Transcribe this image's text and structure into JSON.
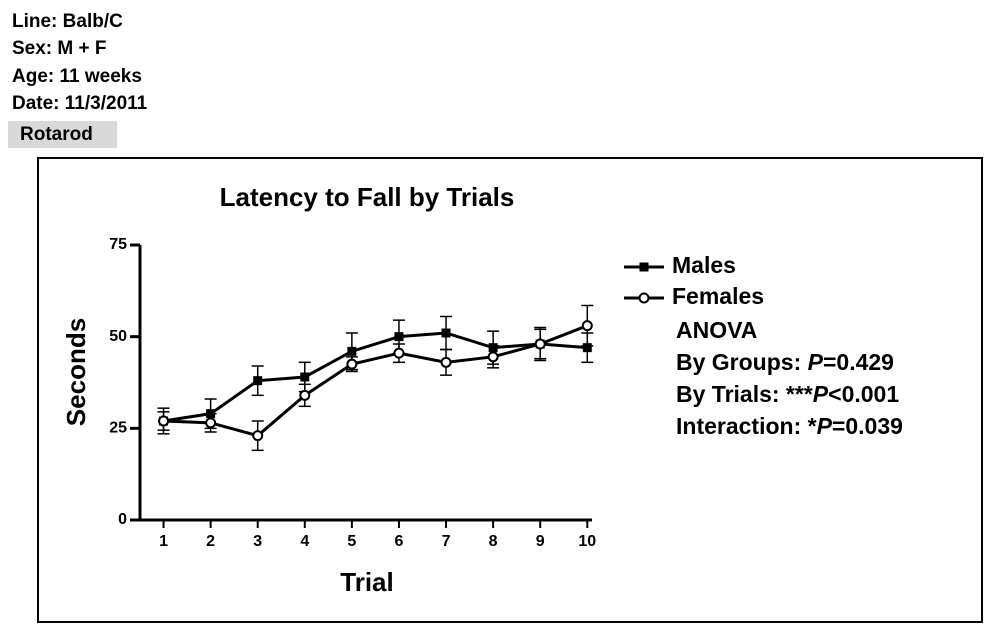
{
  "header": {
    "lines": [
      "Line: Balb/C",
      "Sex: M + F",
      "Age: 11 weeks",
      "Date: 11/3/2011"
    ],
    "tag": "Rotarod"
  },
  "chart_data": {
    "type": "line",
    "title": "Latency to Fall by Trials",
    "x_label": "Trial",
    "y_label": "Seconds",
    "x": [
      1,
      2,
      3,
      4,
      5,
      6,
      7,
      8,
      9,
      10
    ],
    "xlim": [
      0.5,
      10.1
    ],
    "xticks": [
      1,
      2,
      3,
      4,
      5,
      6,
      7,
      8,
      9,
      10
    ],
    "ylim": [
      0,
      75
    ],
    "yticks": [
      0,
      25,
      50,
      75
    ],
    "series": [
      {
        "name": "Males",
        "color": "#000000",
        "marker": "square",
        "values": [
          27,
          29,
          38,
          39,
          46,
          50,
          51,
          47,
          48,
          47
        ],
        "errors": [
          3.5,
          4,
          4,
          4,
          5,
          4.5,
          4.5,
          4.5,
          4.5,
          4
        ]
      },
      {
        "name": "Females",
        "color": "#000000",
        "marker": "open-circle",
        "values": [
          27,
          26.5,
          23,
          34,
          42.5,
          45.5,
          43,
          44.5,
          48,
          53
        ],
        "errors": [
          2.5,
          2.5,
          4,
          3,
          2,
          2.5,
          3.5,
          3,
          4,
          5.5
        ]
      }
    ],
    "annotations": [
      [
        {
          "text": "ANOVA"
        }
      ],
      [
        {
          "text": "By Groups: "
        },
        {
          "text": "P",
          "italic": true
        },
        {
          "text": "=0.429"
        }
      ],
      [
        {
          "text": "By Trials: ***"
        },
        {
          "text": "P",
          "italic": true
        },
        {
          "text": "<0.001"
        }
      ],
      [
        {
          "text": "Interaction: *"
        },
        {
          "text": "P",
          "italic": true
        },
        {
          "text": "=0.039"
        }
      ]
    ]
  }
}
